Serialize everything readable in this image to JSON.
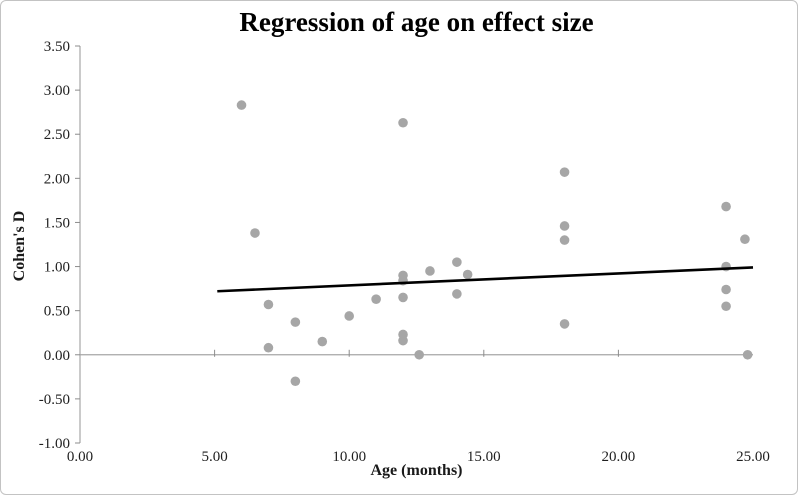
{
  "chart_data": {
    "type": "scatter",
    "title": "Regression of age on effect size",
    "xlabel": "Age (months)",
    "ylabel": "Cohen's D",
    "xlim": [
      0,
      25
    ],
    "ylim": [
      -1.0,
      3.5
    ],
    "xticks": [
      {
        "v": 0,
        "label": "0.00"
      },
      {
        "v": 5,
        "label": "5.00"
      },
      {
        "v": 10,
        "label": "10.00"
      },
      {
        "v": 15,
        "label": "15.00"
      },
      {
        "v": 20,
        "label": "20.00"
      },
      {
        "v": 25,
        "label": "25.00"
      }
    ],
    "yticks": [
      {
        "v": 3.5,
        "label": "3.50"
      },
      {
        "v": 3.0,
        "label": "3.00"
      },
      {
        "v": 2.5,
        "label": "2.50"
      },
      {
        "v": 2.0,
        "label": "2.00"
      },
      {
        "v": 1.5,
        "label": "1.50"
      },
      {
        "v": 1.0,
        "label": "1.00"
      },
      {
        "v": 0.5,
        "label": "0.50"
      },
      {
        "v": 0.0,
        "label": "0.00"
      },
      {
        "v": -0.5,
        "label": "-0.50"
      },
      {
        "v": -1.0,
        "label": "-1.00"
      }
    ],
    "grid": "zero-line-only",
    "legend": "none",
    "points": [
      [
        6,
        2.83
      ],
      [
        6.5,
        1.38
      ],
      [
        7,
        0.57
      ],
      [
        7,
        0.08
      ],
      [
        8,
        0.37
      ],
      [
        8,
        -0.3
      ],
      [
        9,
        0.15
      ],
      [
        10,
        0.44
      ],
      [
        11,
        0.63
      ],
      [
        12,
        2.63
      ],
      [
        12,
        0.9
      ],
      [
        12,
        0.84
      ],
      [
        12,
        0.65
      ],
      [
        12,
        0.23
      ],
      [
        12,
        0.16
      ],
      [
        12.6,
        0.0
      ],
      [
        13,
        0.95
      ],
      [
        14,
        1.05
      ],
      [
        14,
        0.69
      ],
      [
        14.4,
        0.91
      ],
      [
        18,
        2.07
      ],
      [
        18,
        1.46
      ],
      [
        18,
        1.3
      ],
      [
        18,
        0.35
      ],
      [
        24,
        1.68
      ],
      [
        24,
        1.0
      ],
      [
        24,
        0.74
      ],
      [
        24,
        0.55
      ],
      [
        24.7,
        1.31
      ],
      [
        24.8,
        0.0
      ]
    ],
    "trendline": {
      "x1": 5.1,
      "y1": 0.72,
      "x2": 25,
      "y2": 0.99
    },
    "point_color": "#a6a6a6",
    "trendline_color": "#000000",
    "axis_color": "#a6a6a6",
    "tick_color": "#8c8c8c",
    "label_color": "#1f1f1f"
  }
}
